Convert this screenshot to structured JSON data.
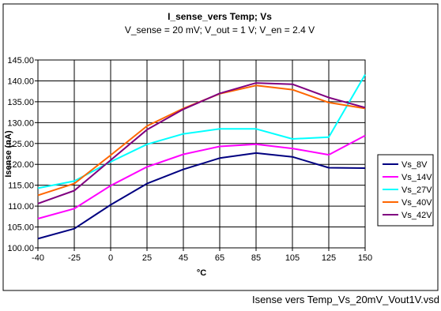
{
  "caption": "Isense vers Temp_Vs_20mV_Vout1V.vsd",
  "chart_data": {
    "type": "line",
    "title": "I_sense_vers Temp; Vs",
    "subtitle": "V_sense = 20 mV; V_out = 1 V; V_en = 2.4 V",
    "xlabel": "°C",
    "ylabel": "Isense (nA)",
    "categories": [
      "-40",
      "-25",
      "0",
      "25",
      "45",
      "65",
      "85",
      "105",
      "125",
      "150"
    ],
    "ylim": [
      100,
      145
    ],
    "yticks": [
      "100.00",
      "105.00",
      "110.00",
      "115.00",
      "120.00",
      "125.00",
      "130.00",
      "135.00",
      "140.00",
      "145.00"
    ],
    "grid": true,
    "legend_position": "right",
    "series": [
      {
        "name": "Vs_8V",
        "color": "#000080",
        "values": [
          102.2,
          104.6,
          110.3,
          115.4,
          118.8,
          121.5,
          122.7,
          121.8,
          119.2,
          119.1
        ]
      },
      {
        "name": "Vs_14V",
        "color": "#ff00ff",
        "values": [
          107.0,
          109.4,
          114.9,
          119.4,
          122.4,
          124.3,
          124.8,
          123.8,
          122.3,
          126.9
        ]
      },
      {
        "name": "Vs_27V",
        "color": "#00ffff",
        "values": [
          114.3,
          116.0,
          120.6,
          124.8,
          127.3,
          128.5,
          128.5,
          126.1,
          126.5,
          141.5
        ]
      },
      {
        "name": "Vs_40V",
        "color": "#ff6600",
        "values": [
          112.6,
          115.4,
          122.2,
          129.2,
          133.4,
          136.9,
          138.9,
          137.9,
          134.8,
          133.4
        ]
      },
      {
        "name": "Vs_42V",
        "color": "#800080",
        "values": [
          110.6,
          113.7,
          121.0,
          128.3,
          133.2,
          137.0,
          139.5,
          139.2,
          136.0,
          133.6
        ]
      }
    ]
  }
}
